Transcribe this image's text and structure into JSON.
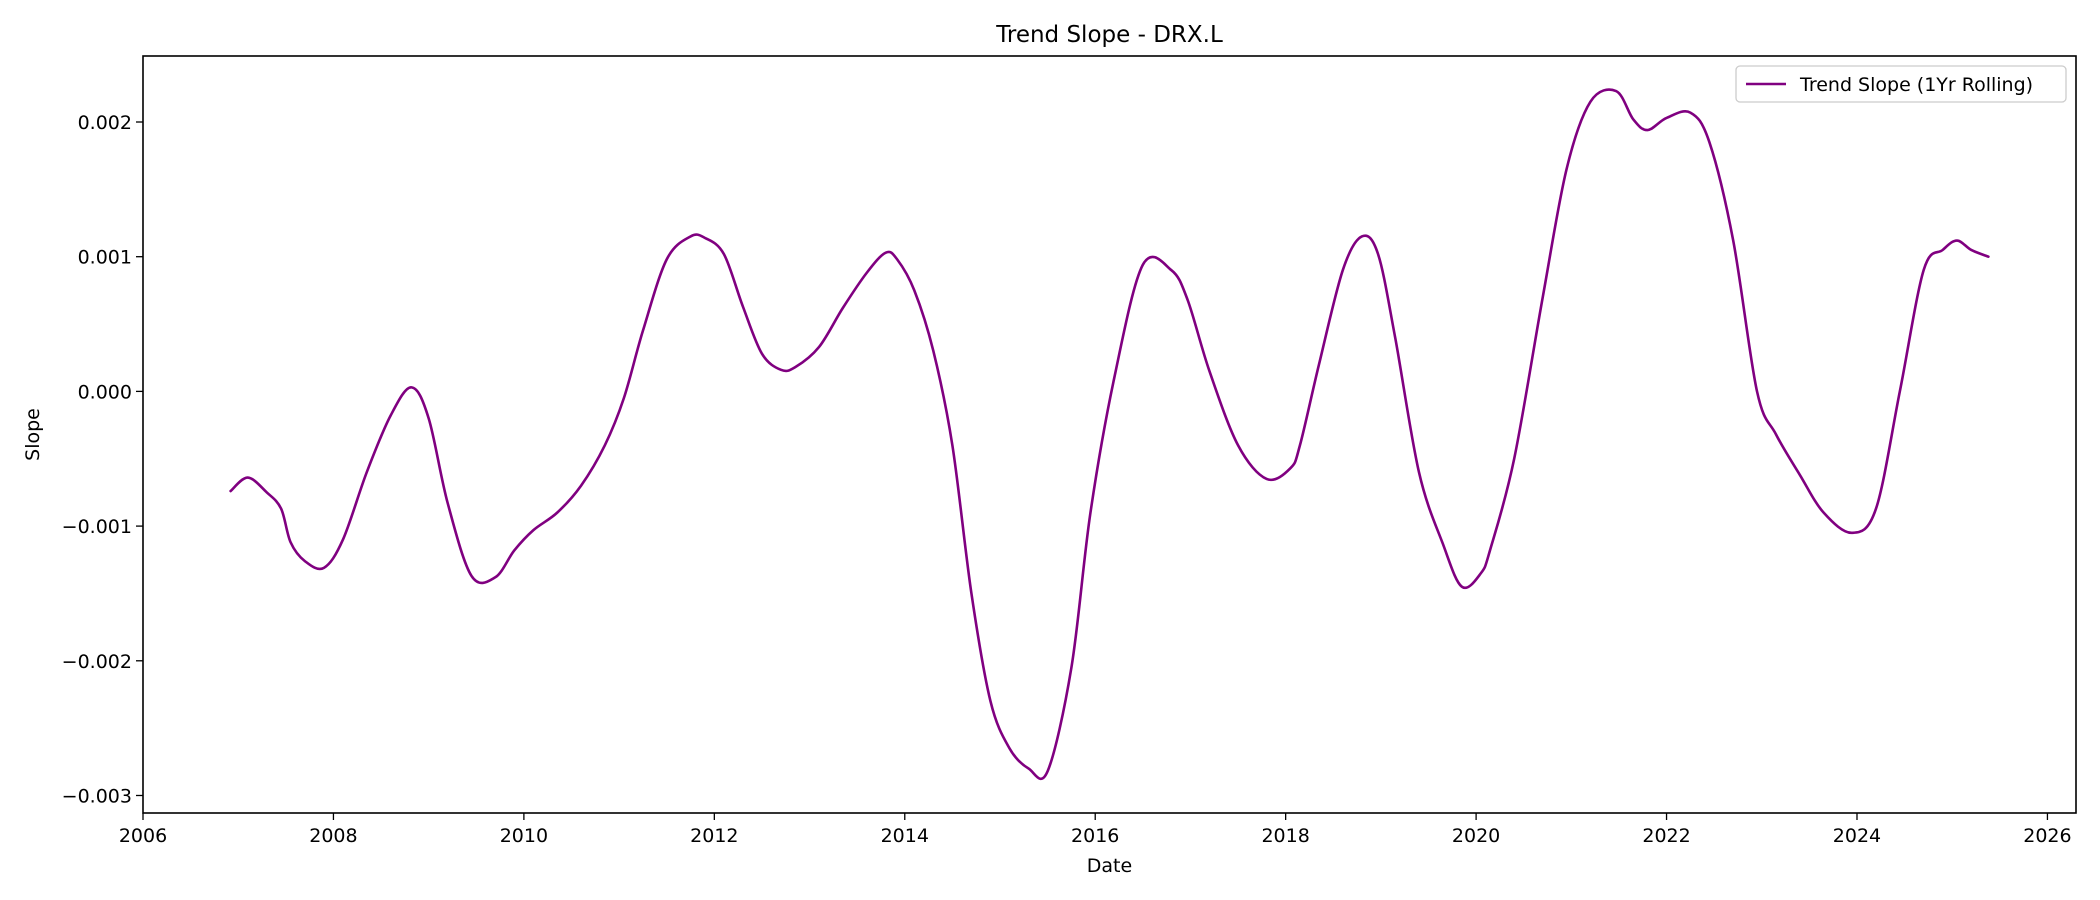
{
  "chart_data": {
    "type": "line",
    "title": "Trend Slope - DRX.L",
    "xlabel": "Date",
    "ylabel": "Slope",
    "xlim": [
      2006.0,
      2026.3
    ],
    "ylim": [
      -0.00313,
      0.00249
    ],
    "x_ticks": [
      2006,
      2008,
      2010,
      2012,
      2014,
      2016,
      2018,
      2020,
      2022,
      2024,
      2026
    ],
    "x_tick_labels": [
      "2006",
      "2008",
      "2010",
      "2012",
      "2014",
      "2016",
      "2018",
      "2020",
      "2022",
      "2024",
      "2026"
    ],
    "y_ticks": [
      -0.003,
      -0.002,
      -0.001,
      0.0,
      0.001,
      0.002
    ],
    "y_tick_labels": [
      "−0.003",
      "−0.002",
      "−0.001",
      "0.000",
      "0.001",
      "0.002"
    ],
    "grid": false,
    "legend": {
      "placement": "top-right"
    },
    "series": [
      {
        "name": "Trend Slope (1Yr Rolling)",
        "color": "#800080",
        "x": [
          2006.92,
          2007.1,
          2007.3,
          2007.45,
          2007.55,
          2007.7,
          2007.9,
          2008.1,
          2008.35,
          2008.6,
          2008.82,
          2009.0,
          2009.2,
          2009.45,
          2009.7,
          2009.9,
          2010.1,
          2010.35,
          2010.6,
          2010.85,
          2011.05,
          2011.25,
          2011.5,
          2011.75,
          2011.9,
          2012.1,
          2012.3,
          2012.5,
          2012.7,
          2012.85,
          2013.1,
          2013.35,
          2013.6,
          2013.8,
          2013.92,
          2014.1,
          2014.3,
          2014.5,
          2014.7,
          2014.9,
          2015.1,
          2015.3,
          2015.5,
          2015.75,
          2015.95,
          2016.2,
          2016.5,
          2016.8,
          2016.97,
          2017.2,
          2017.5,
          2017.8,
          2018.05,
          2018.15,
          2018.35,
          2018.6,
          2018.8,
          2018.97,
          2019.15,
          2019.4,
          2019.65,
          2019.85,
          2020.05,
          2020.15,
          2020.4,
          2020.7,
          2020.95,
          2021.2,
          2021.47,
          2021.65,
          2021.8,
          2022.0,
          2022.25,
          2022.45,
          2022.7,
          2022.95,
          2023.15,
          2023.4,
          2023.65,
          2023.95,
          2024.2,
          2024.45,
          2024.7,
          2024.9,
          2025.05,
          2025.2,
          2025.38
        ],
        "y": [
          -0.00074,
          -0.00064,
          -0.00075,
          -0.00087,
          -0.00112,
          -0.00126,
          -0.00131,
          -0.0011,
          -0.0006,
          -0.00018,
          3e-05,
          -0.0002,
          -0.00083,
          -0.00137,
          -0.00138,
          -0.00118,
          -0.00103,
          -0.0009,
          -0.0007,
          -0.0004,
          -5e-05,
          0.00045,
          0.00098,
          0.00115,
          0.00114,
          0.00102,
          0.00063,
          0.00028,
          0.00016,
          0.00018,
          0.00033,
          0.00062,
          0.00088,
          0.00103,
          0.00098,
          0.00075,
          0.0003,
          -0.0004,
          -0.0015,
          -0.0023,
          -0.00265,
          -0.0028,
          -0.00282,
          -0.00205,
          -0.0009,
          0.0001,
          0.00094,
          0.0009,
          0.00068,
          0.00015,
          -0.0004,
          -0.00065,
          -0.00057,
          -0.0004,
          0.0002,
          0.0009,
          0.00115,
          0.00102,
          0.0004,
          -0.0006,
          -0.00113,
          -0.00145,
          -0.00135,
          -0.00117,
          -0.0005,
          0.0007,
          0.00165,
          0.00215,
          0.00223,
          0.00202,
          0.00194,
          0.00203,
          0.00207,
          0.00185,
          0.00112,
          0.0,
          -0.00032,
          -0.00062,
          -0.0009,
          -0.00105,
          -0.00087,
          0.0,
          0.0009,
          0.00105,
          0.00112,
          0.00105,
          0.001
        ]
      }
    ]
  }
}
